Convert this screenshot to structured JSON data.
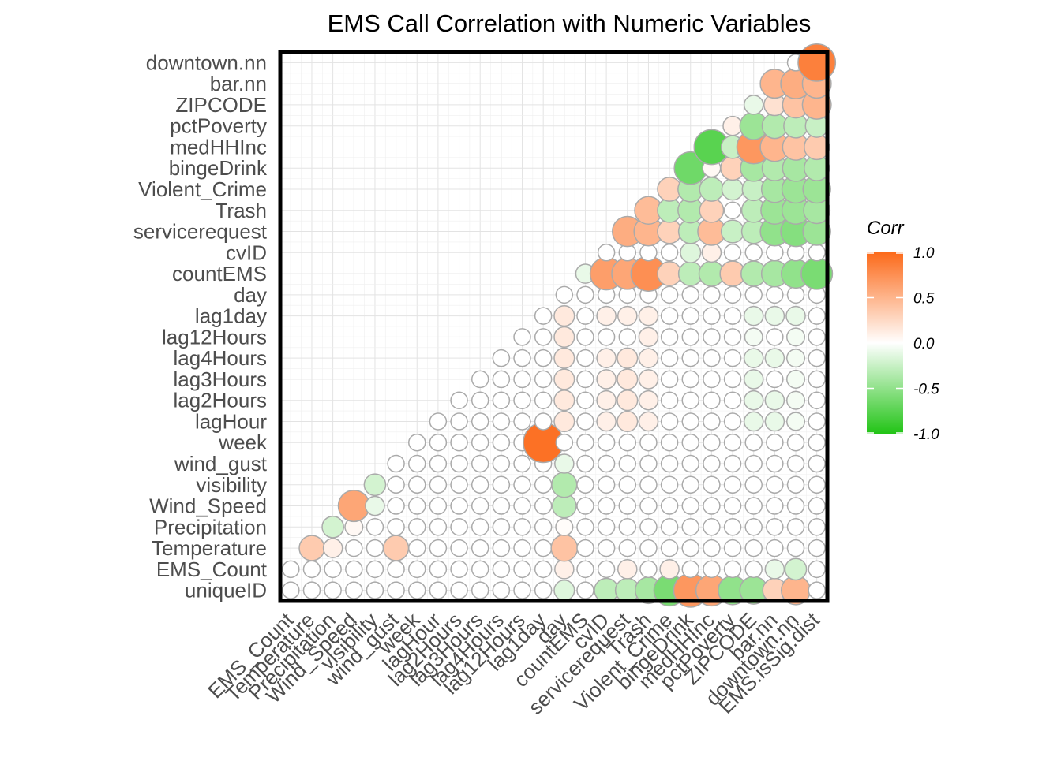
{
  "chart_data": {
    "type": "heatmap",
    "title": "EMS Call Correlation with Numeric Variables",
    "x_labels": [
      "EMS_Count",
      "Temperature",
      "Precipitation",
      "Wind_Speed",
      "visibility",
      "wind_gust",
      "week",
      "lagHour",
      "lag2Hours",
      "lag3Hours",
      "lag4Hours",
      "lag12Hours",
      "lag1day",
      "day",
      "countEMS",
      "cvID",
      "servicerequest",
      "Trash",
      "Violent_Crime",
      "bingeDrink",
      "medHHInc",
      "pctPoverty",
      "ZIPCODE",
      "bar.nn",
      "downtown.nn",
      "EMS.isSig.dist"
    ],
    "y_labels": [
      "uniqueID",
      "EMS_Count",
      "Temperature",
      "Precipitation",
      "Wind_Speed",
      "visibility",
      "wind_gust",
      "week",
      "lagHour",
      "lag2Hours",
      "lag3Hours",
      "lag4Hours",
      "lag12Hours",
      "lag1day",
      "day",
      "countEMS",
      "cvID",
      "servicerequest",
      "Trash",
      "Violent_Crime",
      "bingeDrink",
      "medHHInc",
      "pctPoverty",
      "ZIPCODE",
      "bar.nn",
      "downtown.nn"
    ],
    "nonzero_cells": [
      [
        0,
        13,
        -0.15
      ],
      [
        0,
        15,
        -0.3
      ],
      [
        0,
        16,
        -0.3
      ],
      [
        0,
        17,
        -0.4
      ],
      [
        0,
        18,
        -0.6
      ],
      [
        0,
        19,
        0.7
      ],
      [
        0,
        20,
        0.6
      ],
      [
        0,
        21,
        -0.5
      ],
      [
        0,
        22,
        -0.45
      ],
      [
        0,
        23,
        0.3
      ],
      [
        0,
        24,
        0.5
      ],
      [
        1,
        13,
        0.1
      ],
      [
        1,
        16,
        0.1
      ],
      [
        1,
        18,
        0.1
      ],
      [
        1,
        23,
        -0.1
      ],
      [
        1,
        24,
        -0.2
      ],
      [
        2,
        0,
        -0.2
      ],
      [
        2,
        1,
        0.35
      ],
      [
        2,
        2,
        0.1
      ],
      [
        2,
        5,
        0.35
      ],
      [
        2,
        13,
        0.4
      ],
      [
        3,
        1,
        0.15
      ],
      [
        3,
        2,
        -0.2
      ],
      [
        3,
        3,
        0.05
      ],
      [
        3,
        13,
        0.02
      ],
      [
        4,
        2,
        0.3
      ],
      [
        4,
        3,
        0.6
      ],
      [
        4,
        4,
        -0.1
      ],
      [
        4,
        13,
        -0.3
      ],
      [
        5,
        3,
        0.2
      ],
      [
        5,
        4,
        -0.2
      ],
      [
        5,
        13,
        -0.35
      ],
      [
        6,
        4,
        -0.15
      ],
      [
        6,
        13,
        -0.1
      ],
      [
        7,
        12,
        0.95
      ],
      [
        8,
        13,
        0.15
      ],
      [
        8,
        15,
        0.1
      ],
      [
        8,
        16,
        0.15
      ],
      [
        8,
        17,
        0.1
      ],
      [
        8,
        22,
        -0.1
      ],
      [
        8,
        23,
        -0.1
      ],
      [
        8,
        24,
        -0.05
      ],
      [
        9,
        13,
        0.15
      ],
      [
        9,
        15,
        0.1
      ],
      [
        9,
        16,
        0.15
      ],
      [
        9,
        17,
        0.1
      ],
      [
        9,
        22,
        -0.1
      ],
      [
        9,
        23,
        -0.1
      ],
      [
        9,
        24,
        -0.05
      ],
      [
        10,
        13,
        0.15
      ],
      [
        10,
        15,
        0.1
      ],
      [
        10,
        16,
        0.15
      ],
      [
        10,
        17,
        0.1
      ],
      [
        10,
        22,
        -0.1
      ],
      [
        10,
        24,
        -0.05
      ],
      [
        11,
        13,
        0.15
      ],
      [
        11,
        15,
        0.1
      ],
      [
        11,
        16,
        0.15
      ],
      [
        11,
        17,
        0.1
      ],
      [
        11,
        22,
        -0.1
      ],
      [
        11,
        23,
        -0.1
      ],
      [
        11,
        24,
        -0.05
      ],
      [
        12,
        13,
        0.15
      ],
      [
        12,
        17,
        0.1
      ],
      [
        12,
        22,
        -0.05
      ],
      [
        12,
        24,
        -0.05
      ],
      [
        13,
        13,
        0.15
      ],
      [
        13,
        15,
        0.1
      ],
      [
        13,
        16,
        0.1
      ],
      [
        13,
        17,
        0.1
      ],
      [
        13,
        22,
        -0.1
      ],
      [
        13,
        23,
        -0.1
      ],
      [
        13,
        24,
        -0.1
      ],
      [
        15,
        14,
        -0.1
      ],
      [
        15,
        15,
        0.65
      ],
      [
        15,
        16,
        0.6
      ],
      [
        15,
        17,
        0.75
      ],
      [
        15,
        18,
        0.3
      ],
      [
        15,
        19,
        -0.3
      ],
      [
        15,
        20,
        -0.35
      ],
      [
        15,
        21,
        0.35
      ],
      [
        15,
        22,
        -0.35
      ],
      [
        15,
        23,
        -0.4
      ],
      [
        15,
        24,
        -0.5
      ],
      [
        15,
        25,
        -0.6
      ],
      [
        16,
        19,
        -0.15
      ],
      [
        16,
        20,
        0.1
      ],
      [
        17,
        16,
        0.55
      ],
      [
        17,
        17,
        0.5
      ],
      [
        17,
        18,
        0.3
      ],
      [
        17,
        19,
        -0.3
      ],
      [
        17,
        20,
        0.45
      ],
      [
        17,
        21,
        -0.25
      ],
      [
        17,
        22,
        -0.3
      ],
      [
        17,
        23,
        -0.5
      ],
      [
        17,
        24,
        -0.55
      ],
      [
        17,
        25,
        -0.45
      ],
      [
        18,
        17,
        0.45
      ],
      [
        18,
        18,
        -0.3
      ],
      [
        18,
        19,
        -0.35
      ],
      [
        18,
        20,
        0.3
      ],
      [
        18,
        22,
        -0.3
      ],
      [
        18,
        23,
        -0.45
      ],
      [
        18,
        24,
        -0.45
      ],
      [
        18,
        25,
        -0.4
      ],
      [
        19,
        18,
        0.3
      ],
      [
        19,
        19,
        -0.35
      ],
      [
        19,
        20,
        -0.3
      ],
      [
        19,
        21,
        -0.2
      ],
      [
        19,
        22,
        -0.25
      ],
      [
        19,
        23,
        -0.4
      ],
      [
        19,
        24,
        -0.45
      ],
      [
        19,
        25,
        -0.45
      ],
      [
        20,
        19,
        -0.65
      ],
      [
        20,
        20,
        0.05
      ],
      [
        20,
        21,
        0.3
      ],
      [
        20,
        22,
        -0.4
      ],
      [
        20,
        23,
        -0.35
      ],
      [
        20,
        24,
        -0.4
      ],
      [
        20,
        25,
        -0.35
      ],
      [
        21,
        20,
        -0.75
      ],
      [
        21,
        21,
        -0.25
      ],
      [
        21,
        22,
        0.7
      ],
      [
        21,
        23,
        0.5
      ],
      [
        21,
        24,
        0.4
      ],
      [
        21,
        25,
        0.35
      ],
      [
        22,
        21,
        0.1
      ],
      [
        22,
        22,
        -0.45
      ],
      [
        22,
        23,
        -0.35
      ],
      [
        22,
        24,
        -0.3
      ],
      [
        22,
        25,
        -0.25
      ],
      [
        23,
        22,
        -0.1
      ],
      [
        23,
        23,
        0.2
      ],
      [
        23,
        24,
        0.4
      ],
      [
        23,
        25,
        0.5
      ],
      [
        24,
        23,
        0.5
      ],
      [
        24,
        24,
        0.55
      ],
      [
        24,
        25,
        0.5
      ],
      [
        25,
        25,
        0.85
      ]
    ],
    "color_scale": {
      "low": "#22c416",
      "mid": "#ffffff",
      "high": "#fc6a1a",
      "limits": [
        -1,
        1
      ]
    },
    "legend": {
      "title": "Corr",
      "ticks": [
        "1.0",
        "0.5",
        "0.0",
        "-0.5",
        "-1.0"
      ],
      "position": "right"
    },
    "grid": true
  }
}
